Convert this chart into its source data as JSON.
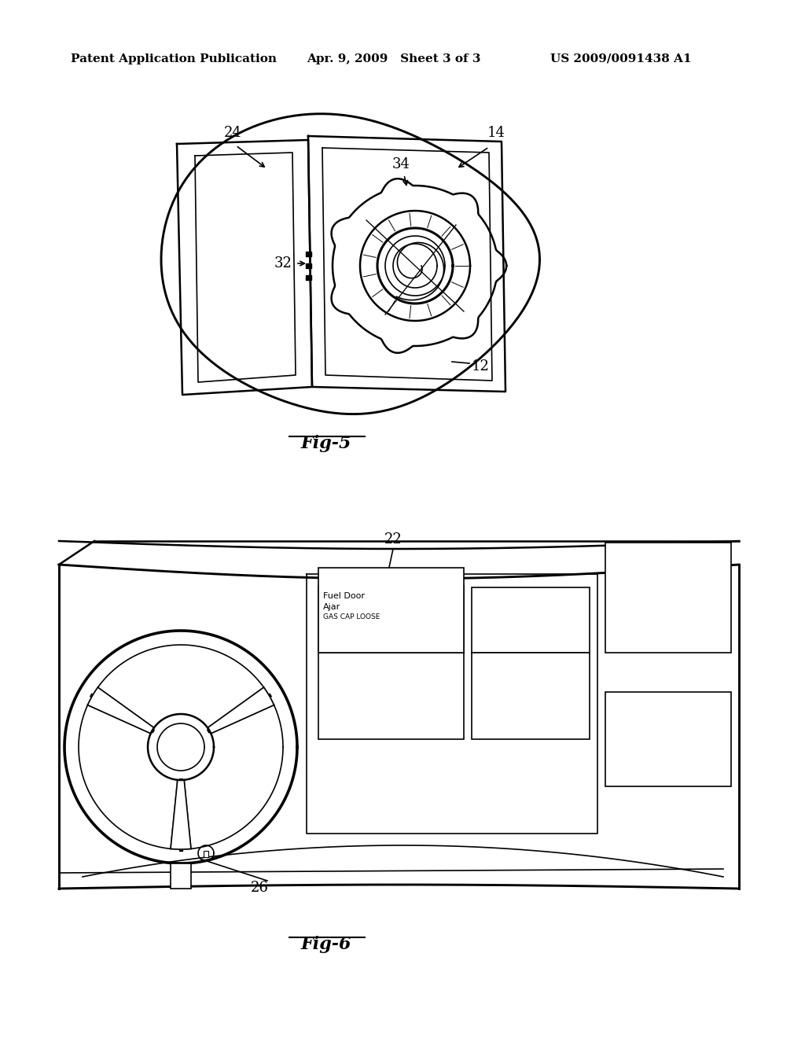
{
  "background_color": "#ffffff",
  "header_left": "Patent Application Publication",
  "header_center": "Apr. 9, 2009   Sheet 3 of 3",
  "header_right": "US 2009/0091438 A1",
  "fig5_label": "Fig-5",
  "fig6_label": "Fig-6",
  "label_14": "14",
  "label_12": "12",
  "label_24": "24",
  "label_32": "32",
  "label_34": "34",
  "label_22": "22",
  "label_26": "26",
  "display_line1": "Fuel Door",
  "display_line2": "Ajar",
  "display_line3": "GAS CAP LOOSE",
  "line_color": "#000000",
  "line_width": 1.8,
  "thin_line": 1.2
}
